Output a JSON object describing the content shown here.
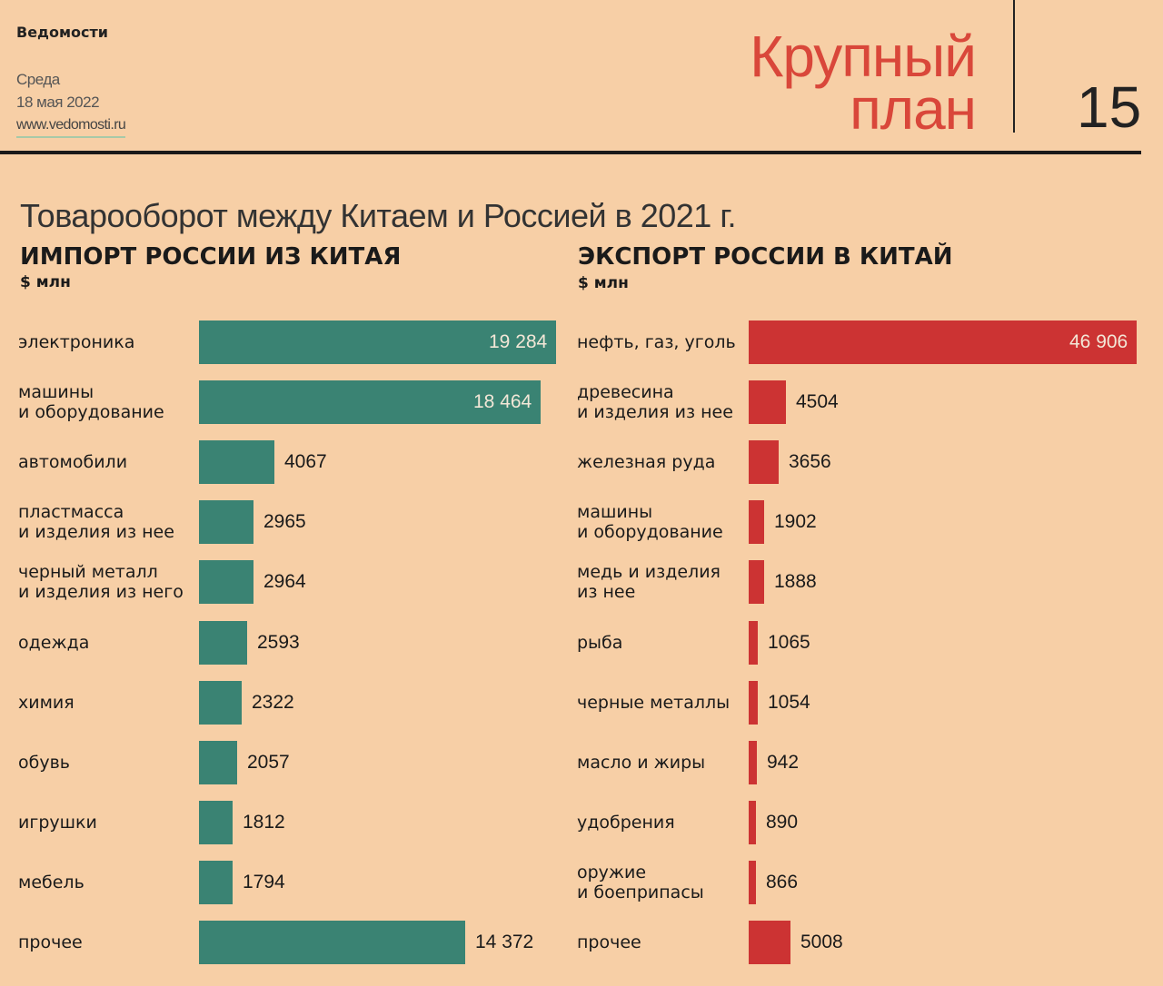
{
  "header": {
    "publication": "Ведомости",
    "weekday": "Среда",
    "date": "18 мая 2022",
    "website": "www.vedomosti.ru",
    "section_line1": "Крупный",
    "section_line2": "план",
    "page_number": "15"
  },
  "colors": {
    "background": "#f7cfa6",
    "import_bar": "#3a8373",
    "export_bar": "#cc3333",
    "section_title": "#d9473a"
  },
  "chart_data": [
    {
      "type": "bar",
      "orientation": "horizontal",
      "title": "Товарооборот между Китаем и Россией в 2021 г.",
      "panel_title": "ИМПОРТ РОССИИ ИЗ КИТАЯ",
      "unit": "$ млн",
      "categories": [
        "электроника",
        "машины\nи оборудование",
        "автомобили",
        "пластмасса\nи изделия из нее",
        "черный металл\nи изделия из него",
        "одежда",
        "химия",
        "обувь",
        "игрушки",
        "мебель",
        "прочее"
      ],
      "values": [
        19284,
        18464,
        4067,
        2965,
        2964,
        2593,
        2322,
        2057,
        1812,
        1794,
        14372
      ],
      "value_labels": [
        "19 284",
        "18 464",
        "4067",
        "2965",
        "2964",
        "2593",
        "2322",
        "2057",
        "1812",
        "1794",
        "14 372"
      ],
      "grid": false
    },
    {
      "type": "bar",
      "orientation": "horizontal",
      "panel_title": "ЭКСПОРТ РОССИИ В КИТАЙ",
      "unit": "$ млн",
      "categories": [
        "нефть, газ, уголь",
        "древесина\nи изделия из нее",
        "железная руда",
        "машины\nи оборудование",
        "медь и изделия\nиз нее",
        "рыба",
        "черные металлы",
        "масло и жиры",
        "удобрения",
        "оружие\nи боеприпасы",
        "прочее"
      ],
      "values": [
        46906,
        4504,
        3656,
        1902,
        1888,
        1065,
        1054,
        942,
        890,
        866,
        5008
      ],
      "value_labels": [
        "46 906",
        "4504",
        "3656",
        "1902",
        "1888",
        "1065",
        "1054",
        "942",
        "890",
        "866",
        "5008"
      ],
      "grid": false
    }
  ]
}
